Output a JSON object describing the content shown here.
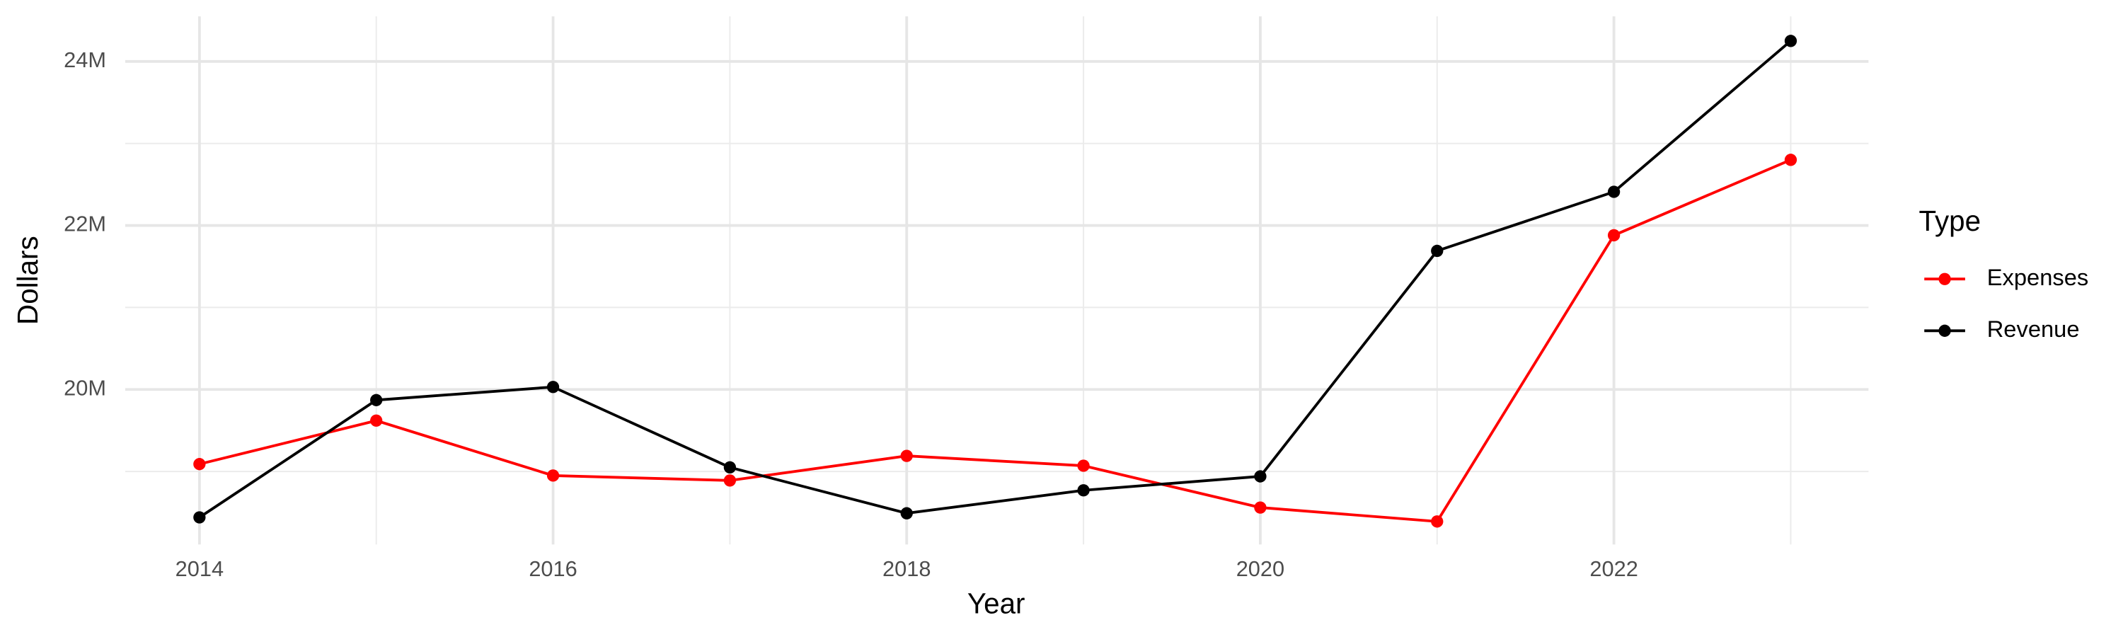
{
  "chart_data": {
    "type": "line",
    "x_label": "Year",
    "y_label": "Dollars",
    "legend_title": "Type",
    "x": [
      2014,
      2015,
      2016,
      2017,
      2018,
      2019,
      2020,
      2021,
      2022,
      2023
    ],
    "series": [
      {
        "name": "Expenses",
        "color": "#ff0000",
        "values": [
          19090000,
          19620000,
          18950000,
          18890000,
          19190000,
          19070000,
          18560000,
          18390000,
          21880000,
          22800000
        ]
      },
      {
        "name": "Revenue",
        "color": "#000000",
        "values": [
          18440000,
          19870000,
          20030000,
          19050000,
          18490000,
          18770000,
          18940000,
          21690000,
          22410000,
          24250000
        ]
      }
    ],
    "xlim": [
      2013.58,
      2023.44
    ],
    "xticks": [
      2014,
      2016,
      2018,
      2020,
      2022
    ],
    "ylim": [
      18110000,
      24550000
    ],
    "yticks": [
      {
        "value": 20000000,
        "label": "20M"
      },
      {
        "value": 22000000,
        "label": "22M"
      },
      {
        "value": 24000000,
        "label": "24M"
      }
    ],
    "grid": true,
    "legend": "right"
  }
}
